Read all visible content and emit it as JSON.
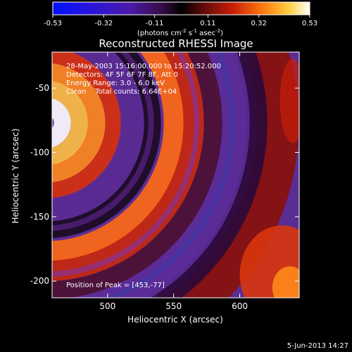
{
  "chart_data": {
    "type": "heatmap",
    "title": "Reconstructed RHESSI Image",
    "colorbar": {
      "ticks": [
        "-0.53",
        "-0.32",
        "-0.11",
        "0.11",
        "0.32",
        "0.53"
      ],
      "label_main": "(photons cm",
      "label_sup1": "-2",
      "label_mid1": " s",
      "label_sup2": "-1",
      "label_mid2": " asec",
      "label_sup3": "-2",
      "label_end": ")",
      "range": [
        -0.53,
        0.53
      ]
    },
    "xlabel": "Heliocentric X (arcsec)",
    "ylabel": "Heliocentric Y (arcsec)",
    "xlim": [
      458,
      645
    ],
    "ylim": [
      -213,
      -22
    ],
    "xticks": [
      500,
      550,
      600
    ],
    "yticks": [
      -50,
      -100,
      -150,
      -200
    ],
    "annotations": [
      "28-May-2003 15:16:00.000 to 15:20:52.000",
      "Detectors: 4F 5F 6F 7F 8F, Att 0",
      "Energy Range: 3.0 - 6.0 keV",
      "Clean    Total counts: 6.64E+04"
    ],
    "peak_text": "Position of Peak = [453,-77]",
    "peak": [
      453,
      -77
    ],
    "date_stamp": "5-Jun-2013 14:27"
  }
}
